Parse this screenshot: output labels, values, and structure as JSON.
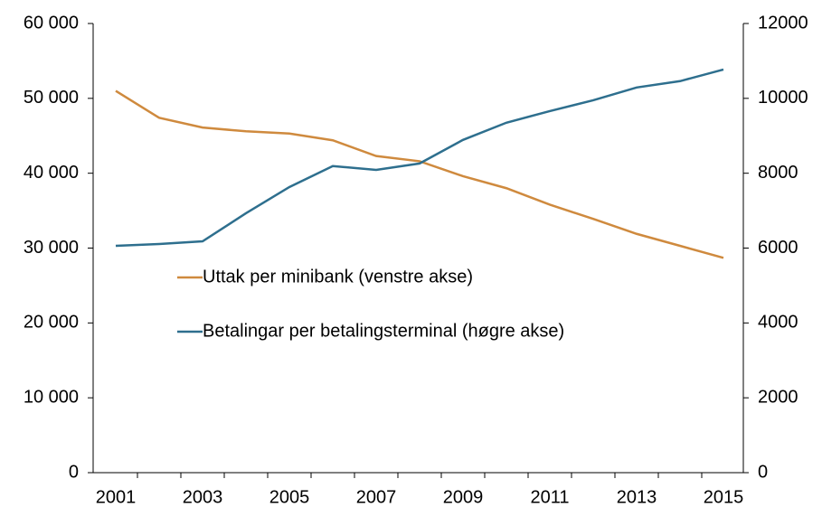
{
  "chart_data": {
    "type": "line",
    "categories": [
      "2001",
      null,
      "2003",
      null,
      "2005",
      null,
      "2007",
      null,
      "2009",
      null,
      "2011",
      null,
      "2013",
      null,
      "2015"
    ],
    "series": [
      {
        "name": "Uttak per minibank (venstre akse)",
        "color": "#cf8a3e",
        "axis": "y",
        "values": [
          51000,
          47400,
          46100,
          45600,
          45300,
          44400,
          42300,
          41600,
          39600,
          38000,
          35800,
          33900,
          31900,
          30300,
          28700
        ]
      },
      {
        "name": "Betalingar per betalingsterminal (høgre akse)",
        "color": "#2e6f8e",
        "axis": "y2",
        "values": [
          6060,
          6110,
          6180,
          6930,
          7630,
          8190,
          8090,
          8260,
          8890,
          9350,
          9660,
          9950,
          10290,
          10460,
          10770
        ]
      }
    ],
    "ylim": [
      0,
      60000
    ],
    "yticks": [
      0,
      {
        "value": 10000,
        "label": "10 000"
      },
      {
        "value": 20000,
        "label": "20 000"
      },
      {
        "value": 30000,
        "label": "30 000"
      },
      {
        "value": 40000,
        "label": "40 000"
      },
      {
        "value": 50000,
        "label": "50 000"
      },
      {
        "value": 60000,
        "label": "60 000"
      }
    ],
    "y2lim": [
      0,
      12000
    ],
    "y2ticks": [
      0,
      2000,
      4000,
      6000,
      8000,
      10000,
      12000
    ],
    "grid": false
  }
}
